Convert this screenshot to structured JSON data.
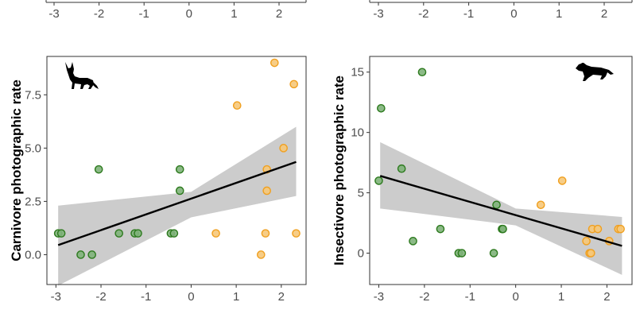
{
  "chart_data": [
    {
      "type": "scatter",
      "title": "",
      "xlabel": "",
      "ylabel": "",
      "x_ticks": [
        "-3",
        "-2",
        "-1",
        "0",
        "1",
        "2"
      ],
      "partial": "top-left panel cut off; only x-axis tick labels visible"
    },
    {
      "type": "scatter",
      "title": "",
      "xlabel": "",
      "ylabel": "",
      "x_ticks": [
        "-3",
        "-2",
        "-1",
        "0",
        "1",
        "2"
      ],
      "partial": "top-right panel cut off; only x-axis tick labels visible"
    },
    {
      "type": "scatter",
      "title": "",
      "xlabel": "",
      "ylabel": "Carnivore photographic rate",
      "xlim": [
        -3.2,
        2.55
      ],
      "ylim": [
        -1.4,
        9.3
      ],
      "x_ticks": [
        "-3",
        "-2",
        "-1",
        "0",
        "1",
        "2"
      ],
      "y_ticks": [
        "0.0",
        "2.5",
        "5.0",
        "7.5"
      ],
      "icon": "fox-silhouette-icon",
      "series": [
        {
          "color": "#2d7a1e",
          "fill": "#7fb37a",
          "points": [
            [
              -2.95,
              1
            ],
            [
              -2.88,
              1
            ],
            [
              -2.45,
              0
            ],
            [
              -2.2,
              0
            ],
            [
              -2.05,
              4
            ],
            [
              -1.6,
              1
            ],
            [
              -1.25,
              1
            ],
            [
              -1.18,
              1
            ],
            [
              -0.45,
              1
            ],
            [
              -0.38,
              1
            ],
            [
              -0.25,
              4
            ],
            [
              -0.25,
              3
            ]
          ]
        },
        {
          "color": "#f0a020",
          "fill": "#f6c879",
          "points": [
            [
              0.55,
              1
            ],
            [
              1.02,
              7
            ],
            [
              1.55,
              0
            ],
            [
              1.65,
              1
            ],
            [
              1.68,
              4
            ],
            [
              1.68,
              3
            ],
            [
              1.85,
              9
            ],
            [
              2.05,
              5
            ],
            [
              2.28,
              8
            ],
            [
              2.33,
              1
            ]
          ]
        }
      ],
      "fit": {
        "x": [
          -2.95,
          2.33
        ],
        "y": [
          0.45,
          4.35
        ]
      },
      "ci_band": {
        "x": [
          -2.95,
          0,
          2.33
        ],
        "lower": [
          -1.45,
          1.75,
          2.75
        ],
        "upper": [
          2.3,
          2.95,
          6.0
        ]
      }
    },
    {
      "type": "scatter",
      "title": "",
      "xlabel": "",
      "ylabel": "Insectivore photographic rate",
      "xlim": [
        -3.2,
        2.55
      ],
      "ylim": [
        -2.6,
        16.3
      ],
      "x_ticks": [
        "-3",
        "-2",
        "-1",
        "0",
        "1",
        "2"
      ],
      "y_ticks": [
        "0",
        "5",
        "10",
        "15"
      ],
      "icon": "weasel-silhouette-icon",
      "series": [
        {
          "color": "#2d7a1e",
          "fill": "#7fb37a",
          "points": [
            [
              -3.0,
              6
            ],
            [
              -2.95,
              12
            ],
            [
              -2.5,
              7
            ],
            [
              -2.25,
              1
            ],
            [
              -2.05,
              15
            ],
            [
              -1.65,
              2
            ],
            [
              -1.25,
              0
            ],
            [
              -1.18,
              0
            ],
            [
              -0.48,
              0
            ],
            [
              -0.42,
              4
            ],
            [
              -0.3,
              2
            ],
            [
              -0.28,
              2
            ]
          ]
        },
        {
          "color": "#f0a020",
          "fill": "#f6c879",
          "points": [
            [
              0.55,
              4
            ],
            [
              1.02,
              6
            ],
            [
              1.55,
              1
            ],
            [
              1.62,
              0
            ],
            [
              1.65,
              0
            ],
            [
              1.68,
              2
            ],
            [
              1.8,
              2
            ],
            [
              2.05,
              1
            ],
            [
              2.25,
              2
            ],
            [
              2.3,
              2
            ]
          ]
        }
      ],
      "fit": {
        "x": [
          -2.97,
          2.33
        ],
        "y": [
          6.4,
          0.6
        ]
      },
      "ci_band": {
        "x": [
          -2.97,
          0,
          2.33
        ],
        "lower": [
          3.7,
          2.3,
          -1.8
        ],
        "upper": [
          9.2,
          3.7,
          3.0
        ]
      }
    }
  ]
}
